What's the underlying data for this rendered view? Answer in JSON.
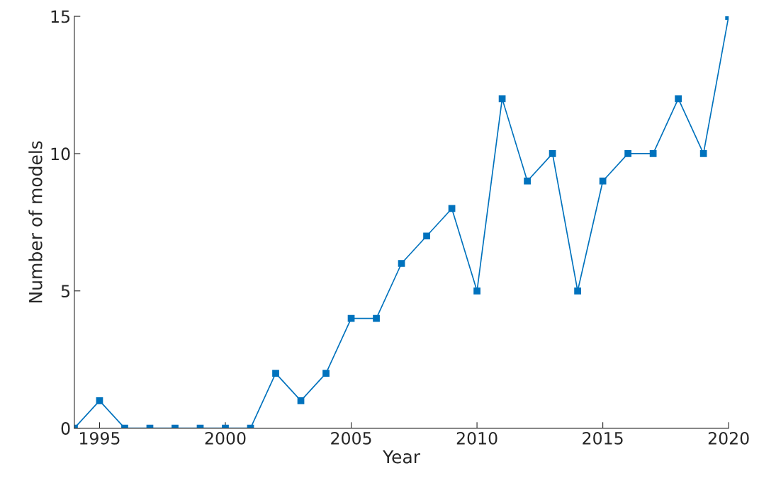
{
  "chart_data": {
    "type": "line",
    "xlabel": "Year",
    "ylabel": "Number of models",
    "x": [
      1994,
      1995,
      1996,
      1997,
      1998,
      1999,
      2000,
      2001,
      2002,
      2003,
      2004,
      2005,
      2006,
      2007,
      2008,
      2009,
      2010,
      2011,
      2012,
      2013,
      2014,
      2015,
      2016,
      2017,
      2018,
      2019,
      2020
    ],
    "series": [
      {
        "color": "#0072bd",
        "values": [
          0,
          1,
          0,
          0,
          0,
          0,
          0,
          0,
          2,
          1,
          2,
          4,
          4,
          6,
          7,
          8,
          5,
          12,
          9,
          10,
          5,
          9,
          10,
          10,
          12,
          10,
          15
        ]
      }
    ],
    "xlim": [
      1994,
      2020
    ],
    "xticks": [
      1995,
      2000,
      2005,
      2010,
      2015,
      2020
    ],
    "ylim": [
      0,
      15
    ],
    "yticks": [
      0,
      5,
      10,
      15
    ],
    "marker": "square",
    "line_style": "solid",
    "grid": false,
    "legend": false
  }
}
